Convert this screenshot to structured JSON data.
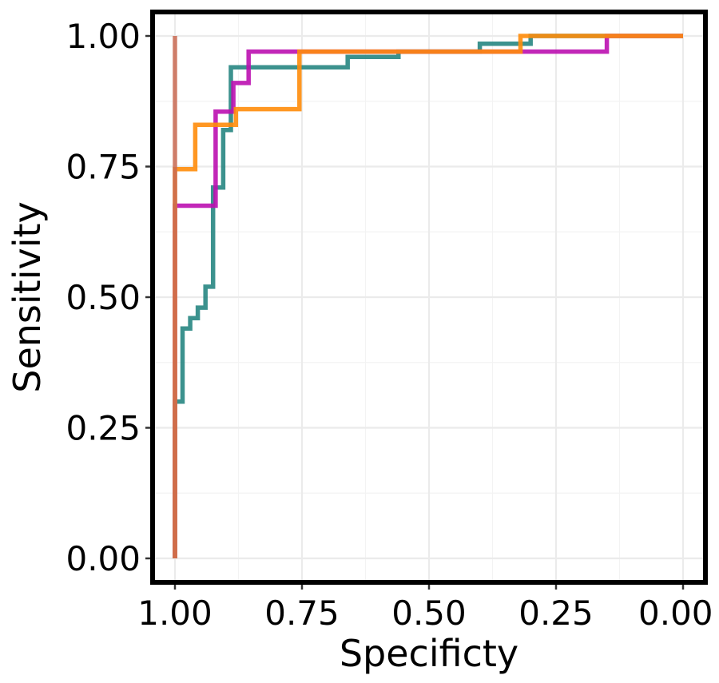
{
  "chart_data": {
    "type": "line",
    "step": true,
    "xlabel": "Specificty",
    "ylabel": "Sensitivity",
    "x_reversed": true,
    "xlim": [
      1.05,
      -0.05
    ],
    "ylim": [
      -0.05,
      1.05
    ],
    "x_ticks": [
      "1.00",
      "0.75",
      "0.50",
      "0.25",
      "0.00"
    ],
    "y_ticks": [
      "0.00",
      "0.25",
      "0.50",
      "0.75",
      "1.00"
    ],
    "grid": true,
    "legend": "none",
    "series": [
      {
        "color": "#1a7f7a",
        "opacity": 0.85,
        "points": [
          [
            1.0,
            0.0
          ],
          [
            1.0,
            0.3
          ],
          [
            0.985,
            0.3
          ],
          [
            0.985,
            0.44
          ],
          [
            0.97,
            0.44
          ],
          [
            0.97,
            0.46
          ],
          [
            0.955,
            0.46
          ],
          [
            0.955,
            0.48
          ],
          [
            0.94,
            0.48
          ],
          [
            0.94,
            0.52
          ],
          [
            0.925,
            0.52
          ],
          [
            0.925,
            0.71
          ],
          [
            0.905,
            0.71
          ],
          [
            0.905,
            0.82
          ],
          [
            0.89,
            0.82
          ],
          [
            0.89,
            0.94
          ],
          [
            0.66,
            0.94
          ],
          [
            0.66,
            0.96
          ],
          [
            0.56,
            0.96
          ],
          [
            0.56,
            0.97
          ],
          [
            0.4,
            0.97
          ],
          [
            0.4,
            0.985
          ],
          [
            0.3,
            0.985
          ],
          [
            0.3,
            1.0
          ],
          [
            0.0,
            1.0
          ]
        ]
      },
      {
        "color": "#bb0fb0",
        "opacity": 0.9,
        "points": [
          [
            1.0,
            0.0
          ],
          [
            1.0,
            0.675
          ],
          [
            0.92,
            0.675
          ],
          [
            0.92,
            0.855
          ],
          [
            0.885,
            0.855
          ],
          [
            0.885,
            0.91
          ],
          [
            0.855,
            0.91
          ],
          [
            0.855,
            0.97
          ],
          [
            0.15,
            0.97
          ],
          [
            0.15,
            1.0
          ],
          [
            0.0,
            1.0
          ]
        ]
      },
      {
        "color": "#ff8c0a",
        "opacity": 0.9,
        "points": [
          [
            1.0,
            0.0
          ],
          [
            1.0,
            0.745
          ],
          [
            0.96,
            0.745
          ],
          [
            0.96,
            0.83
          ],
          [
            0.88,
            0.83
          ],
          [
            0.88,
            0.86
          ],
          [
            0.755,
            0.86
          ],
          [
            0.755,
            0.97
          ],
          [
            0.32,
            0.97
          ],
          [
            0.32,
            1.0
          ],
          [
            0.0,
            1.0
          ]
        ]
      },
      {
        "color": "#c96a52",
        "opacity": 0.85,
        "points": [
          [
            1.0,
            0.0
          ],
          [
            1.0,
            0.3
          ],
          [
            1.0,
            0.675
          ],
          [
            1.0,
            0.97
          ],
          [
            1.0,
            1.0
          ],
          [
            1.0,
            1.0
          ]
        ],
        "overlay_vertical": true
      }
    ]
  }
}
